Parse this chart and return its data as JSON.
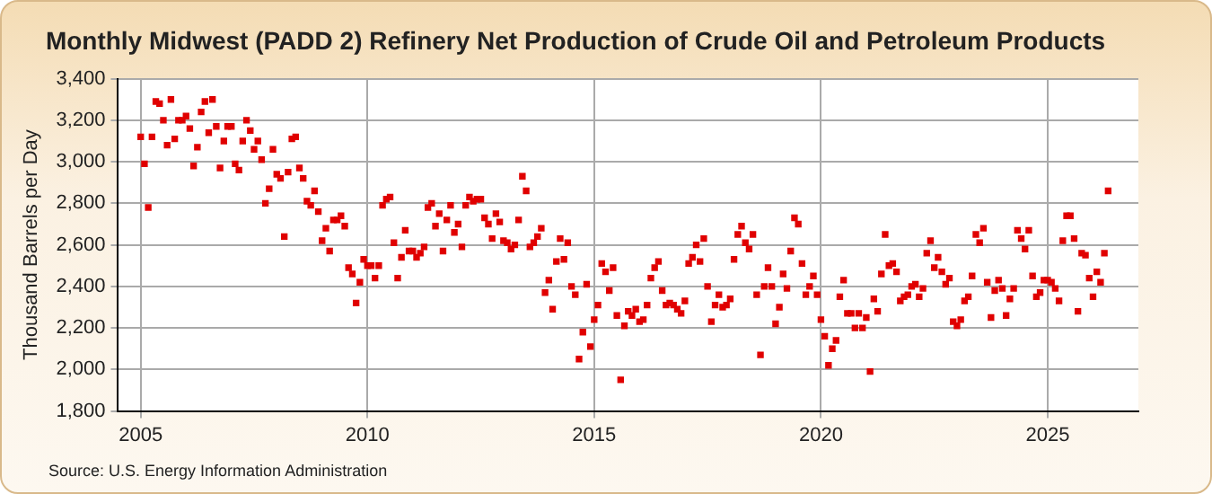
{
  "chart_data": {
    "type": "scatter",
    "title": "Monthly Midwest (PADD 2) Refinery Net Production of Crude Oil and Petroleum Products",
    "ylabel": "Thousand Barrels per Day",
    "annotations": [
      "Source: U.S. Energy Information Administration"
    ],
    "x": [
      "2005-01",
      "2005-02",
      "2005-03",
      "2005-04",
      "2005-05",
      "2005-06",
      "2005-07",
      "2005-08",
      "2005-09",
      "2005-10",
      "2005-11",
      "2005-12",
      "2006-01",
      "2006-02",
      "2006-03",
      "2006-04",
      "2006-05",
      "2006-06",
      "2006-07",
      "2006-08",
      "2006-09",
      "2006-10",
      "2006-11",
      "2006-12",
      "2007-01",
      "2007-02",
      "2007-03",
      "2007-04",
      "2007-05",
      "2007-06",
      "2007-07",
      "2007-08",
      "2007-09",
      "2007-10",
      "2007-11",
      "2007-12",
      "2008-01",
      "2008-02",
      "2008-03",
      "2008-04",
      "2008-05",
      "2008-06",
      "2008-07",
      "2008-08",
      "2008-09",
      "2008-10",
      "2008-11",
      "2008-12",
      "2009-01",
      "2009-02",
      "2009-03",
      "2009-04",
      "2009-05",
      "2009-06",
      "2009-07",
      "2009-08",
      "2009-09",
      "2009-10",
      "2009-11",
      "2009-12",
      "2010-01",
      "2010-02",
      "2010-03",
      "2010-04",
      "2010-05",
      "2010-06",
      "2010-07",
      "2010-08",
      "2010-09",
      "2010-10",
      "2010-11",
      "2010-12",
      "2011-01",
      "2011-02",
      "2011-03",
      "2011-04",
      "2011-05",
      "2011-06",
      "2011-07",
      "2011-08",
      "2011-09",
      "2011-10",
      "2011-11",
      "2011-12",
      "2012-01",
      "2012-02",
      "2012-03",
      "2012-04",
      "2012-05",
      "2012-06",
      "2012-07",
      "2012-08",
      "2012-09",
      "2012-10",
      "2012-11",
      "2012-12",
      "2013-01",
      "2013-02",
      "2013-03",
      "2013-04",
      "2013-05",
      "2013-06",
      "2013-07",
      "2013-08",
      "2013-09",
      "2013-10",
      "2013-11",
      "2013-12",
      "2014-01",
      "2014-02",
      "2014-03",
      "2014-04",
      "2014-05",
      "2014-06",
      "2014-07",
      "2014-08",
      "2014-09",
      "2014-10",
      "2014-11",
      "2014-12",
      "2015-01",
      "2015-02",
      "2015-03",
      "2015-04",
      "2015-05",
      "2015-06",
      "2015-07",
      "2015-08",
      "2015-09",
      "2015-10",
      "2015-11",
      "2015-12",
      "2016-01",
      "2016-02",
      "2016-03",
      "2016-04",
      "2016-05",
      "2016-06",
      "2016-07",
      "2016-08",
      "2016-09",
      "2016-10",
      "2016-11",
      "2016-12",
      "2017-01",
      "2017-02",
      "2017-03",
      "2017-04",
      "2017-05",
      "2017-06",
      "2017-07",
      "2017-08",
      "2017-09",
      "2017-10",
      "2017-11",
      "2017-12",
      "2018-01",
      "2018-02",
      "2018-03",
      "2018-04",
      "2018-05",
      "2018-06",
      "2018-07",
      "2018-08",
      "2018-09",
      "2018-10",
      "2018-11",
      "2018-12",
      "2019-01",
      "2019-02",
      "2019-03",
      "2019-04",
      "2019-05",
      "2019-06",
      "2019-07",
      "2019-08",
      "2019-09",
      "2019-10",
      "2019-11",
      "2019-12",
      "2020-01",
      "2020-02",
      "2020-03",
      "2020-04",
      "2020-05",
      "2020-06",
      "2020-07",
      "2020-08",
      "2020-09",
      "2020-10",
      "2020-11",
      "2020-12",
      "2021-01",
      "2021-02",
      "2021-03",
      "2021-04",
      "2021-05",
      "2021-06",
      "2021-07",
      "2021-08",
      "2021-09",
      "2021-10",
      "2021-11",
      "2021-12",
      "2022-01",
      "2022-02",
      "2022-03",
      "2022-04",
      "2022-05",
      "2022-06",
      "2022-07",
      "2022-08",
      "2022-09",
      "2022-10",
      "2022-11",
      "2022-12",
      "2023-01",
      "2023-02",
      "2023-03",
      "2023-04",
      "2023-05",
      "2023-06",
      "2023-07",
      "2023-08",
      "2023-09",
      "2023-10",
      "2023-11",
      "2023-12",
      "2024-01",
      "2024-02",
      "2024-03",
      "2024-04",
      "2024-05",
      "2024-06",
      "2024-07",
      "2024-08",
      "2024-09",
      "2024-10",
      "2024-11",
      "2024-12",
      "2025-01",
      "2025-02",
      "2025-03",
      "2025-04",
      "2025-05",
      "2025-06",
      "2025-07",
      "2025-08",
      "2025-09",
      "2025-10",
      "2025-11",
      "2025-12",
      "2026-01",
      "2026-02",
      "2026-03",
      "2026-04",
      "2026-05"
    ],
    "series": [
      {
        "color": "#e00000",
        "values": [
          3120,
          2990,
          2780,
          3120,
          3290,
          3280,
          3200,
          3080,
          3300,
          3110,
          3200,
          3200,
          3220,
          3160,
          2980,
          3070,
          3240,
          3290,
          3140,
          3300,
          3170,
          2970,
          3100,
          3170,
          3170,
          2990,
          2960,
          3100,
          3200,
          3150,
          3060,
          3100,
          3010,
          2800,
          2870,
          3060,
          2940,
          2920,
          2640,
          2950,
          3110,
          3120,
          2970,
          2920,
          2810,
          2790,
          2860,
          2760,
          2620,
          2680,
          2570,
          2720,
          2720,
          2740,
          2690,
          2490,
          2460,
          2320,
          2420,
          2530,
          2500,
          2500,
          2440,
          2500,
          2790,
          2820,
          2830,
          2610,
          2440,
          2540,
          2670,
          2570,
          2570,
          2540,
          2560,
          2590,
          2780,
          2800,
          2690,
          2750,
          2570,
          2720,
          2790,
          2660,
          2700,
          2590,
          2790,
          2830,
          2810,
          2820,
          2820,
          2730,
          2700,
          2630,
          2750,
          2710,
          2620,
          2610,
          2580,
          2600,
          2720,
          2930,
          2860,
          2590,
          2610,
          2640,
          2680,
          2370,
          2430,
          2290,
          2520,
          2630,
          2530,
          2610,
          2400,
          2360,
          2050,
          2180,
          2410,
          2110,
          2240,
          2310,
          2510,
          2470,
          2380,
          2490,
          2260,
          1950,
          2210,
          2280,
          2260,
          2290,
          2230,
          2240,
          2310,
          2440,
          2490,
          2520,
          2380,
          2310,
          2320,
          2310,
          2290,
          2270,
          2330,
          2510,
          2540,
          2600,
          2520,
          2630,
          2400,
          2230,
          2310,
          2360,
          2300,
          2310,
          2340,
          2530,
          2650,
          2690,
          2610,
          2580,
          2650,
          2360,
          2070,
          2400,
          2490,
          2400,
          2220,
          2300,
          2460,
          2390,
          2570,
          2730,
          2700,
          2510,
          2360,
          2400,
          2450,
          2360,
          2240,
          2160,
          2020,
          2100,
          2140,
          2350,
          2430,
          2270,
          2270,
          2200,
          2270,
          2200,
          2250,
          1990,
          2340,
          2280,
          2460,
          2650,
          2500,
          2510,
          2470,
          2330,
          2350,
          2360,
          2400,
          2410,
          2350,
          2390,
          2560,
          2620,
          2490,
          2540,
          2470,
          2410,
          2440,
          2230,
          2210,
          2240,
          2330,
          2350,
          2450,
          2650,
          2610,
          2680,
          2420,
          2250,
          2380,
          2430,
          2390,
          2260,
          2340,
          2390,
          2670,
          2630,
          2580,
          2670,
          2450,
          2350,
          2370,
          2430,
          2430,
          2420,
          2390,
          2330,
          2620,
          2740,
          2740,
          2630,
          2280,
          2560,
          2550,
          2440,
          2350,
          2470,
          2420,
          2560,
          2860
        ]
      }
    ],
    "xlim": [
      "2004-07",
      "2027-01"
    ],
    "xticks": [
      "2005",
      "2010",
      "2015",
      "2020",
      "2025"
    ],
    "ylim": [
      1800,
      3400
    ],
    "yticks": [
      {
        "value": 1800,
        "label": "1,800"
      },
      {
        "value": 2000,
        "label": "2,000"
      },
      {
        "value": 2200,
        "label": "2,200"
      },
      {
        "value": 2400,
        "label": "2,400"
      },
      {
        "value": 2600,
        "label": "2,600"
      },
      {
        "value": 2800,
        "label": "2,800"
      },
      {
        "value": 3000,
        "label": "3,000"
      },
      {
        "value": 3200,
        "label": "3,200"
      },
      {
        "value": 3400,
        "label": "3,400"
      }
    ],
    "grid": true,
    "legend": false,
    "marker": "square"
  }
}
